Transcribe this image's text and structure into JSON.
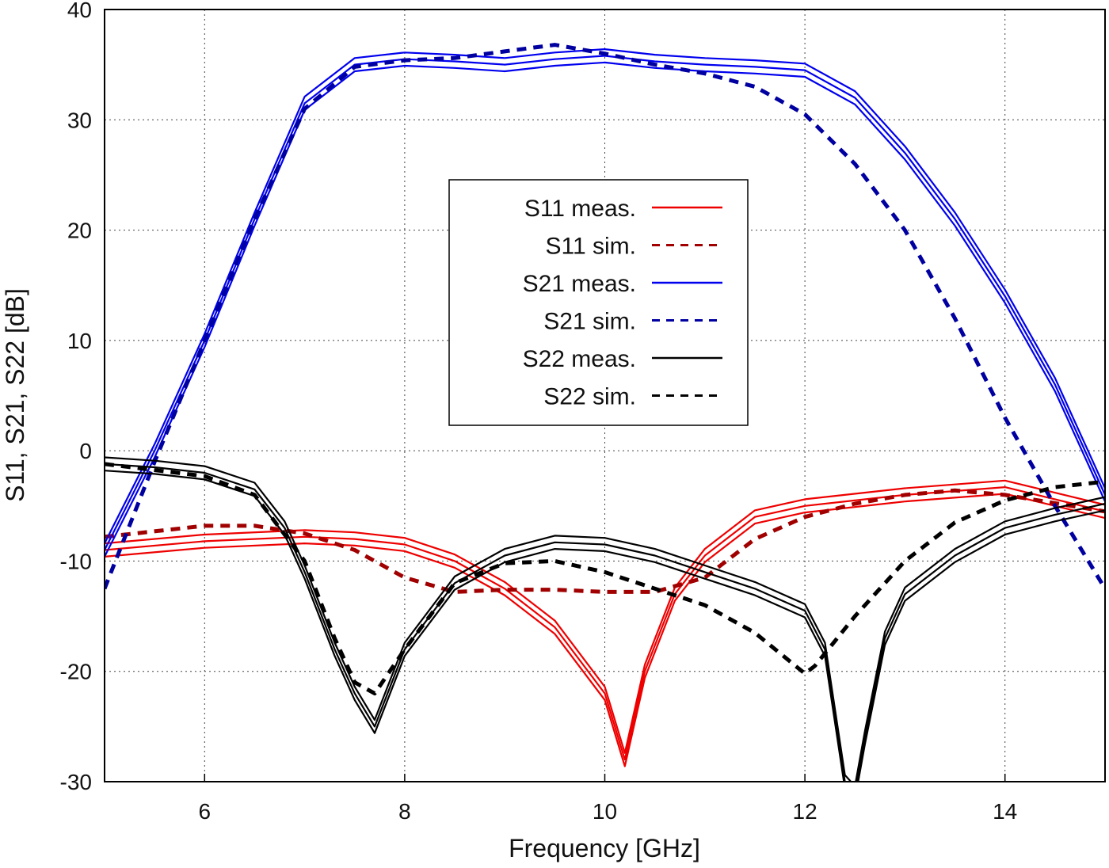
{
  "chart_data": {
    "type": "line",
    "title": "",
    "xlabel": "Frequency [GHz]",
    "ylabel": "S11, S21, S22 [dB]",
    "xlim": [
      5,
      15
    ],
    "ylim": [
      -30,
      40
    ],
    "xticks": [
      6,
      8,
      10,
      12,
      14
    ],
    "yticks": [
      -30,
      -20,
      -10,
      0,
      10,
      20,
      30,
      40
    ],
    "grid": true,
    "legend_position": "center",
    "series": [
      {
        "name": "S11 meas.",
        "color": "#ee0000",
        "dash": false,
        "x": [
          5,
          6,
          7,
          7.5,
          8,
          8.5,
          9,
          9.5,
          10,
          10.2,
          10.4,
          10.7,
          11,
          11.5,
          12,
          13,
          14,
          15
        ],
        "y": [
          -9,
          -8.2,
          -7.8,
          -8,
          -8.5,
          -10,
          -12.5,
          -16,
          -22,
          -28,
          -20,
          -13,
          -9.5,
          -6,
          -5,
          -4,
          -3.3,
          -5.5
        ]
      },
      {
        "name": "S11 sim.",
        "color": "#a00000",
        "dash": true,
        "x": [
          5,
          6,
          6.5,
          7,
          7.5,
          8,
          8.5,
          9,
          9.5,
          10,
          10.5,
          11,
          11.5,
          12,
          12.5,
          13,
          13.5,
          14,
          15
        ],
        "y": [
          -7.8,
          -6.8,
          -6.8,
          -7.5,
          -9,
          -11.5,
          -12.8,
          -12.6,
          -12.6,
          -12.8,
          -12.8,
          -11.5,
          -8,
          -6,
          -4.8,
          -4,
          -3.6,
          -4,
          -5.5
        ]
      },
      {
        "name": "S21 meas.",
        "color": "#0000ee",
        "dash": false,
        "x": [
          5,
          5.5,
          6,
          6.5,
          7,
          7.5,
          8,
          8.5,
          9,
          9.5,
          10,
          10.5,
          11,
          11.5,
          12,
          12.5,
          13,
          13.5,
          14,
          14.5,
          15
        ],
        "y": [
          -9,
          0,
          10,
          21,
          31.5,
          35,
          35.5,
          35.3,
          35,
          35.5,
          35.8,
          35.3,
          35,
          34.8,
          34.5,
          32,
          27,
          21,
          14,
          6,
          -4
        ]
      },
      {
        "name": "S21 sim.",
        "color": "#0000a0",
        "dash": true,
        "x": [
          5,
          5.5,
          6,
          6.5,
          7,
          7.5,
          8,
          8.5,
          9,
          9.5,
          10,
          10.5,
          11,
          11.5,
          12,
          12.5,
          13,
          13.5,
          14,
          14.5,
          15
        ],
        "y": [
          -12.5,
          -1,
          10,
          21,
          31,
          34.8,
          35.4,
          35.6,
          36.2,
          36.8,
          36,
          35,
          34.2,
          33,
          30.5,
          26,
          20,
          12,
          3,
          -5,
          -12.5
        ]
      },
      {
        "name": "S22 meas.",
        "color": "#000000",
        "dash": false,
        "x": [
          5,
          5.5,
          6,
          6.5,
          6.8,
          7,
          7.3,
          7.5,
          7.7,
          8,
          8.5,
          9,
          9.5,
          10,
          10.5,
          11,
          11.5,
          12,
          12.2,
          12.4,
          12.5,
          12.6,
          12.8,
          13,
          13.5,
          14,
          14.5,
          15
        ],
        "y": [
          -1.2,
          -1.5,
          -2,
          -3.5,
          -7,
          -11,
          -18,
          -22,
          -25,
          -18,
          -12,
          -9.5,
          -8.3,
          -8.5,
          -9.5,
          -11,
          -12.5,
          -14.5,
          -18,
          -30,
          -31,
          -26,
          -17,
          -13,
          -9.5,
          -7,
          -5.8,
          -4.8
        ]
      },
      {
        "name": "S22 sim.",
        "color": "#000000",
        "dash": true,
        "x": [
          5,
          6,
          6.5,
          7,
          7.3,
          7.5,
          7.7,
          8,
          8.5,
          9,
          9.5,
          10,
          10.5,
          11,
          11.5,
          12,
          12.1,
          12.5,
          13,
          13.5,
          14,
          14.5,
          15
        ],
        "y": [
          -1.2,
          -2.3,
          -4,
          -10,
          -17,
          -21,
          -22,
          -18,
          -12,
          -10.2,
          -10,
          -11,
          -12.5,
          -14,
          -16.5,
          -20.2,
          -19.5,
          -15,
          -10,
          -6.5,
          -4.5,
          -3.3,
          -2.8
        ]
      }
    ]
  }
}
